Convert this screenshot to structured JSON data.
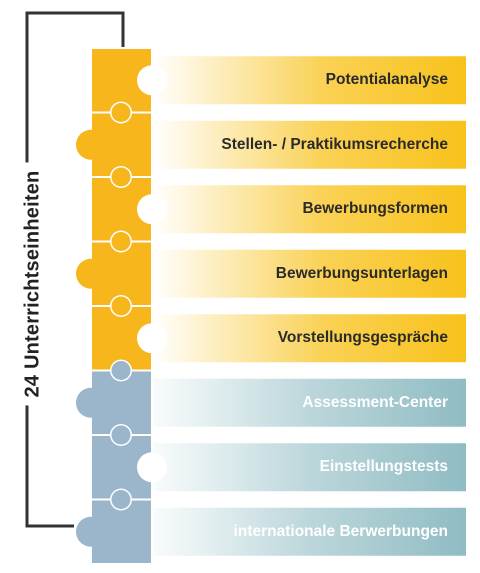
{
  "side_label": "24 Unterrichtseinheiten",
  "colors": {
    "gold": "#F7B61C",
    "gold_band": "#F8C21B",
    "blue": "#9BB5CB",
    "teal_band": "#8FBCC3",
    "bracket": "#333333",
    "text_dark": "#2a2a2a",
    "text_light": "#ffffff"
  },
  "modules": [
    {
      "label": "Potentialanalyse",
      "group": "gold"
    },
    {
      "label": "Stellen- / Praktikumsrecherche",
      "group": "gold"
    },
    {
      "label": "Bewerbungsformen",
      "group": "gold"
    },
    {
      "label": "Bewerbungsunterlagen",
      "group": "gold"
    },
    {
      "label": "Vorstellungsgespräche",
      "group": "gold"
    },
    {
      "label": "Assessment-Center",
      "group": "blue"
    },
    {
      "label": "Einstellungstests",
      "group": "blue"
    },
    {
      "label": "internationale Berwerbungen",
      "group": "blue"
    }
  ]
}
